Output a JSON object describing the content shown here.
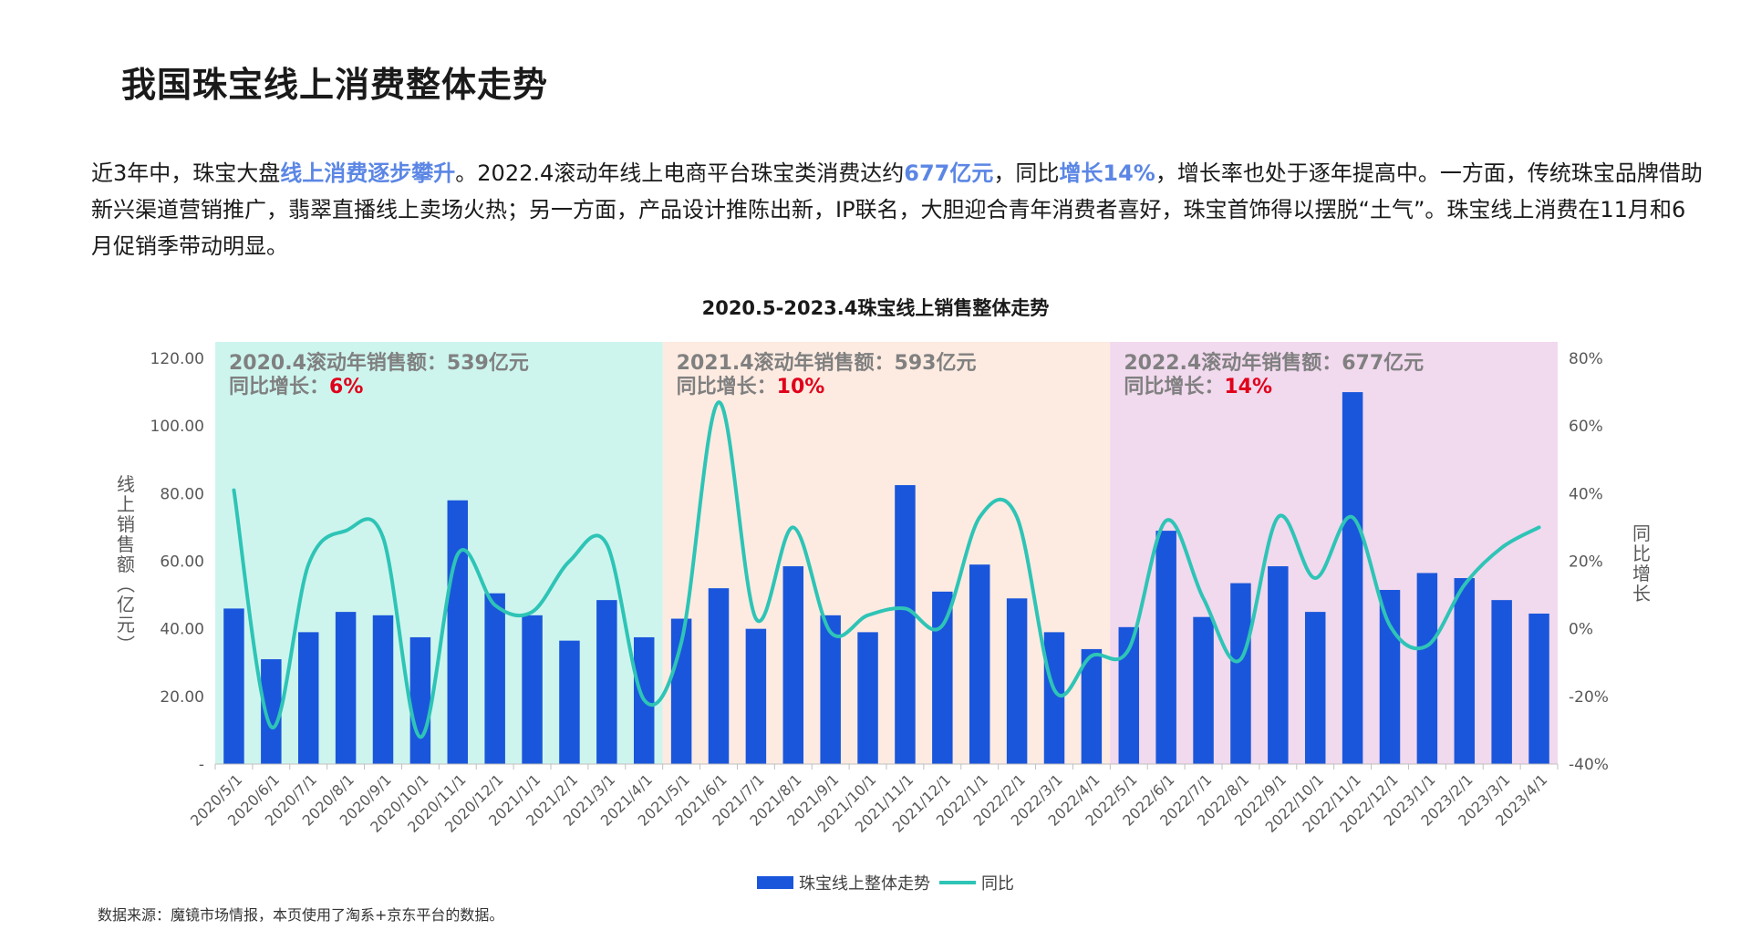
{
  "page_title": "我国珠宝线上消费整体走势",
  "intro": {
    "seg1": "近3年中，珠宝大盘",
    "hl1": "线上消费逐步攀升",
    "seg2": "。2022.4滚动年线上电商平台珠宝类消费达约",
    "hl2": "677亿元",
    "seg3": "，同比",
    "hl3": "增长14%",
    "seg4": "，增长率也处于逐年提高中。一方面，传统珠宝品牌借助新兴渠道营销推广，翡翠直播线上卖场火热；另一方面，产品设计推陈出新，IP联名，大胆迎合青年消费者喜好，珠宝首饰得以摆脱“土气”。珠宝线上消费在11月和6月促销季带动明显。"
  },
  "source": "数据来源：魔镜市场情报，本页使用了淘系+京东平台的数据。",
  "colors": {
    "bar": "#1a56db",
    "line": "#2ec4b6",
    "band1": "#cdf5ee",
    "band2": "#fdebe1",
    "band3": "#f1d9ee",
    "highlight": "#e0001b",
    "annot": "#808080"
  },
  "chart_data": {
    "type": "bar",
    "title": "2020.5-2023.4珠宝线上销售整体走势",
    "ylabel": "线上销售额（亿元）",
    "y2label": "同比增长",
    "ylim": [
      0,
      120
    ],
    "y2lim": [
      -0.4,
      0.8
    ],
    "y_ticks": [
      "-",
      "20.00",
      "40.00",
      "60.00",
      "80.00",
      "100.00",
      "120.00"
    ],
    "y2_ticks": [
      "-40%",
      "-20%",
      "0%",
      "20%",
      "40%",
      "60%",
      "80%"
    ],
    "categories": [
      "2020/5/1",
      "2020/6/1",
      "2020/7/1",
      "2020/8/1",
      "2020/9/1",
      "2020/10/1",
      "2020/11/1",
      "2020/12/1",
      "2021/1/1",
      "2021/2/1",
      "2021/3/1",
      "2021/4/1",
      "2021/5/1",
      "2021/6/1",
      "2021/7/1",
      "2021/8/1",
      "2021/9/1",
      "2021/10/1",
      "2021/11/1",
      "2021/12/1",
      "2022/1/1",
      "2022/2/1",
      "2022/3/1",
      "2022/4/1",
      "2022/5/1",
      "2022/6/1",
      "2022/7/1",
      "2022/8/1",
      "2022/9/1",
      "2022/10/1",
      "2022/11/1",
      "2022/12/1",
      "2023/1/1",
      "2023/2/1",
      "2023/3/1",
      "2023/4/1"
    ],
    "series": [
      {
        "name": "珠宝线上整体走势",
        "type": "bar",
        "axis": "left",
        "values": [
          46,
          31,
          39,
          45,
          44,
          37.5,
          78,
          50.5,
          44,
          36.5,
          48.5,
          37.5,
          43,
          52,
          40,
          58.5,
          44,
          39,
          82.5,
          51,
          59,
          49,
          39,
          34,
          40.5,
          69,
          43.5,
          53.5,
          58.5,
          45,
          110,
          51.5,
          56.5,
          55,
          48.5,
          44.5
        ]
      },
      {
        "name": "同比",
        "type": "line",
        "axis": "right",
        "values": [
          0.41,
          -0.29,
          0.19,
          0.29,
          0.27,
          -0.32,
          0.22,
          0.07,
          0.05,
          0.2,
          0.25,
          -0.21,
          -0.04,
          0.67,
          0.03,
          0.3,
          -0.01,
          0.04,
          0.06,
          0.01,
          0.33,
          0.33,
          -0.18,
          -0.08,
          -0.06,
          0.32,
          0.09,
          -0.09,
          0.33,
          0.15,
          0.33,
          0.01,
          -0.05,
          0.13,
          0.24,
          0.3
        ]
      }
    ],
    "periods": [
      {
        "start": 0,
        "end": 12,
        "label": "2020.4滚动年销售额：539亿元",
        "growth_label": "同比增长：",
        "growth": "6%"
      },
      {
        "start": 12,
        "end": 24,
        "label": "2021.4滚动年销售额：593亿元",
        "growth_label": "同比增长：",
        "growth": "10%"
      },
      {
        "start": 24,
        "end": 36,
        "label": "2022.4滚动年销售额：677亿元",
        "growth_label": "同比增长：",
        "growth": "14%"
      }
    ],
    "legend_position": "bottom"
  }
}
